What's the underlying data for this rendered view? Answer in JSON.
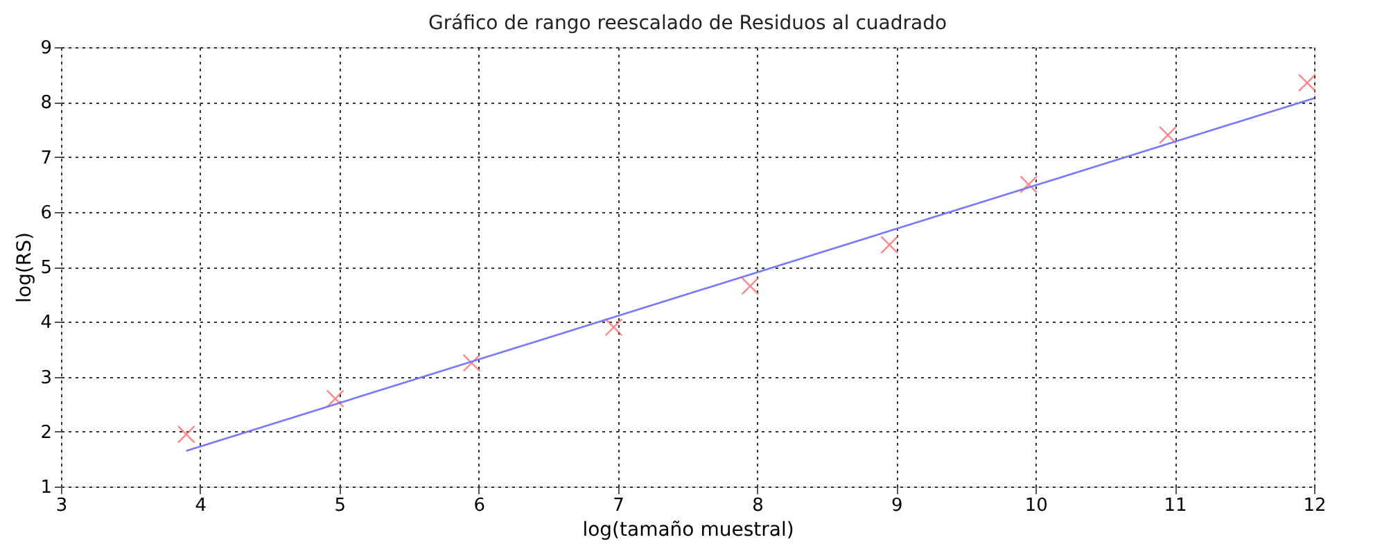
{
  "chart_data": {
    "type": "scatter",
    "title": "Gráfico de rango reescalado de Residuos al cuadrado",
    "xlabel": "log(tamaño muestral)",
    "ylabel": "log(RS)",
    "xlim": [
      3,
      12
    ],
    "xticks": [
      3,
      4,
      5,
      6,
      7,
      8,
      9,
      10,
      11,
      12
    ],
    "ylim": [
      1,
      9
    ],
    "yticks": [
      1,
      2,
      3,
      4,
      5,
      6,
      7,
      8,
      9
    ],
    "grid": true,
    "series": [
      {
        "color": "#ff5555",
        "marker": "cross",
        "x": [
          3.9,
          4.97,
          5.95,
          6.97,
          7.95,
          8.95,
          9.95,
          10.95,
          11.95
        ],
        "values": [
          1.95,
          2.6,
          3.25,
          3.9,
          4.65,
          5.4,
          6.5,
          7.4,
          8.35
        ]
      },
      {
        "type": "line",
        "color": "#7777ff",
        "line_style": "solid",
        "x": [
          3.9,
          12
        ],
        "values": [
          1.65,
          8.07
        ]
      }
    ]
  }
}
